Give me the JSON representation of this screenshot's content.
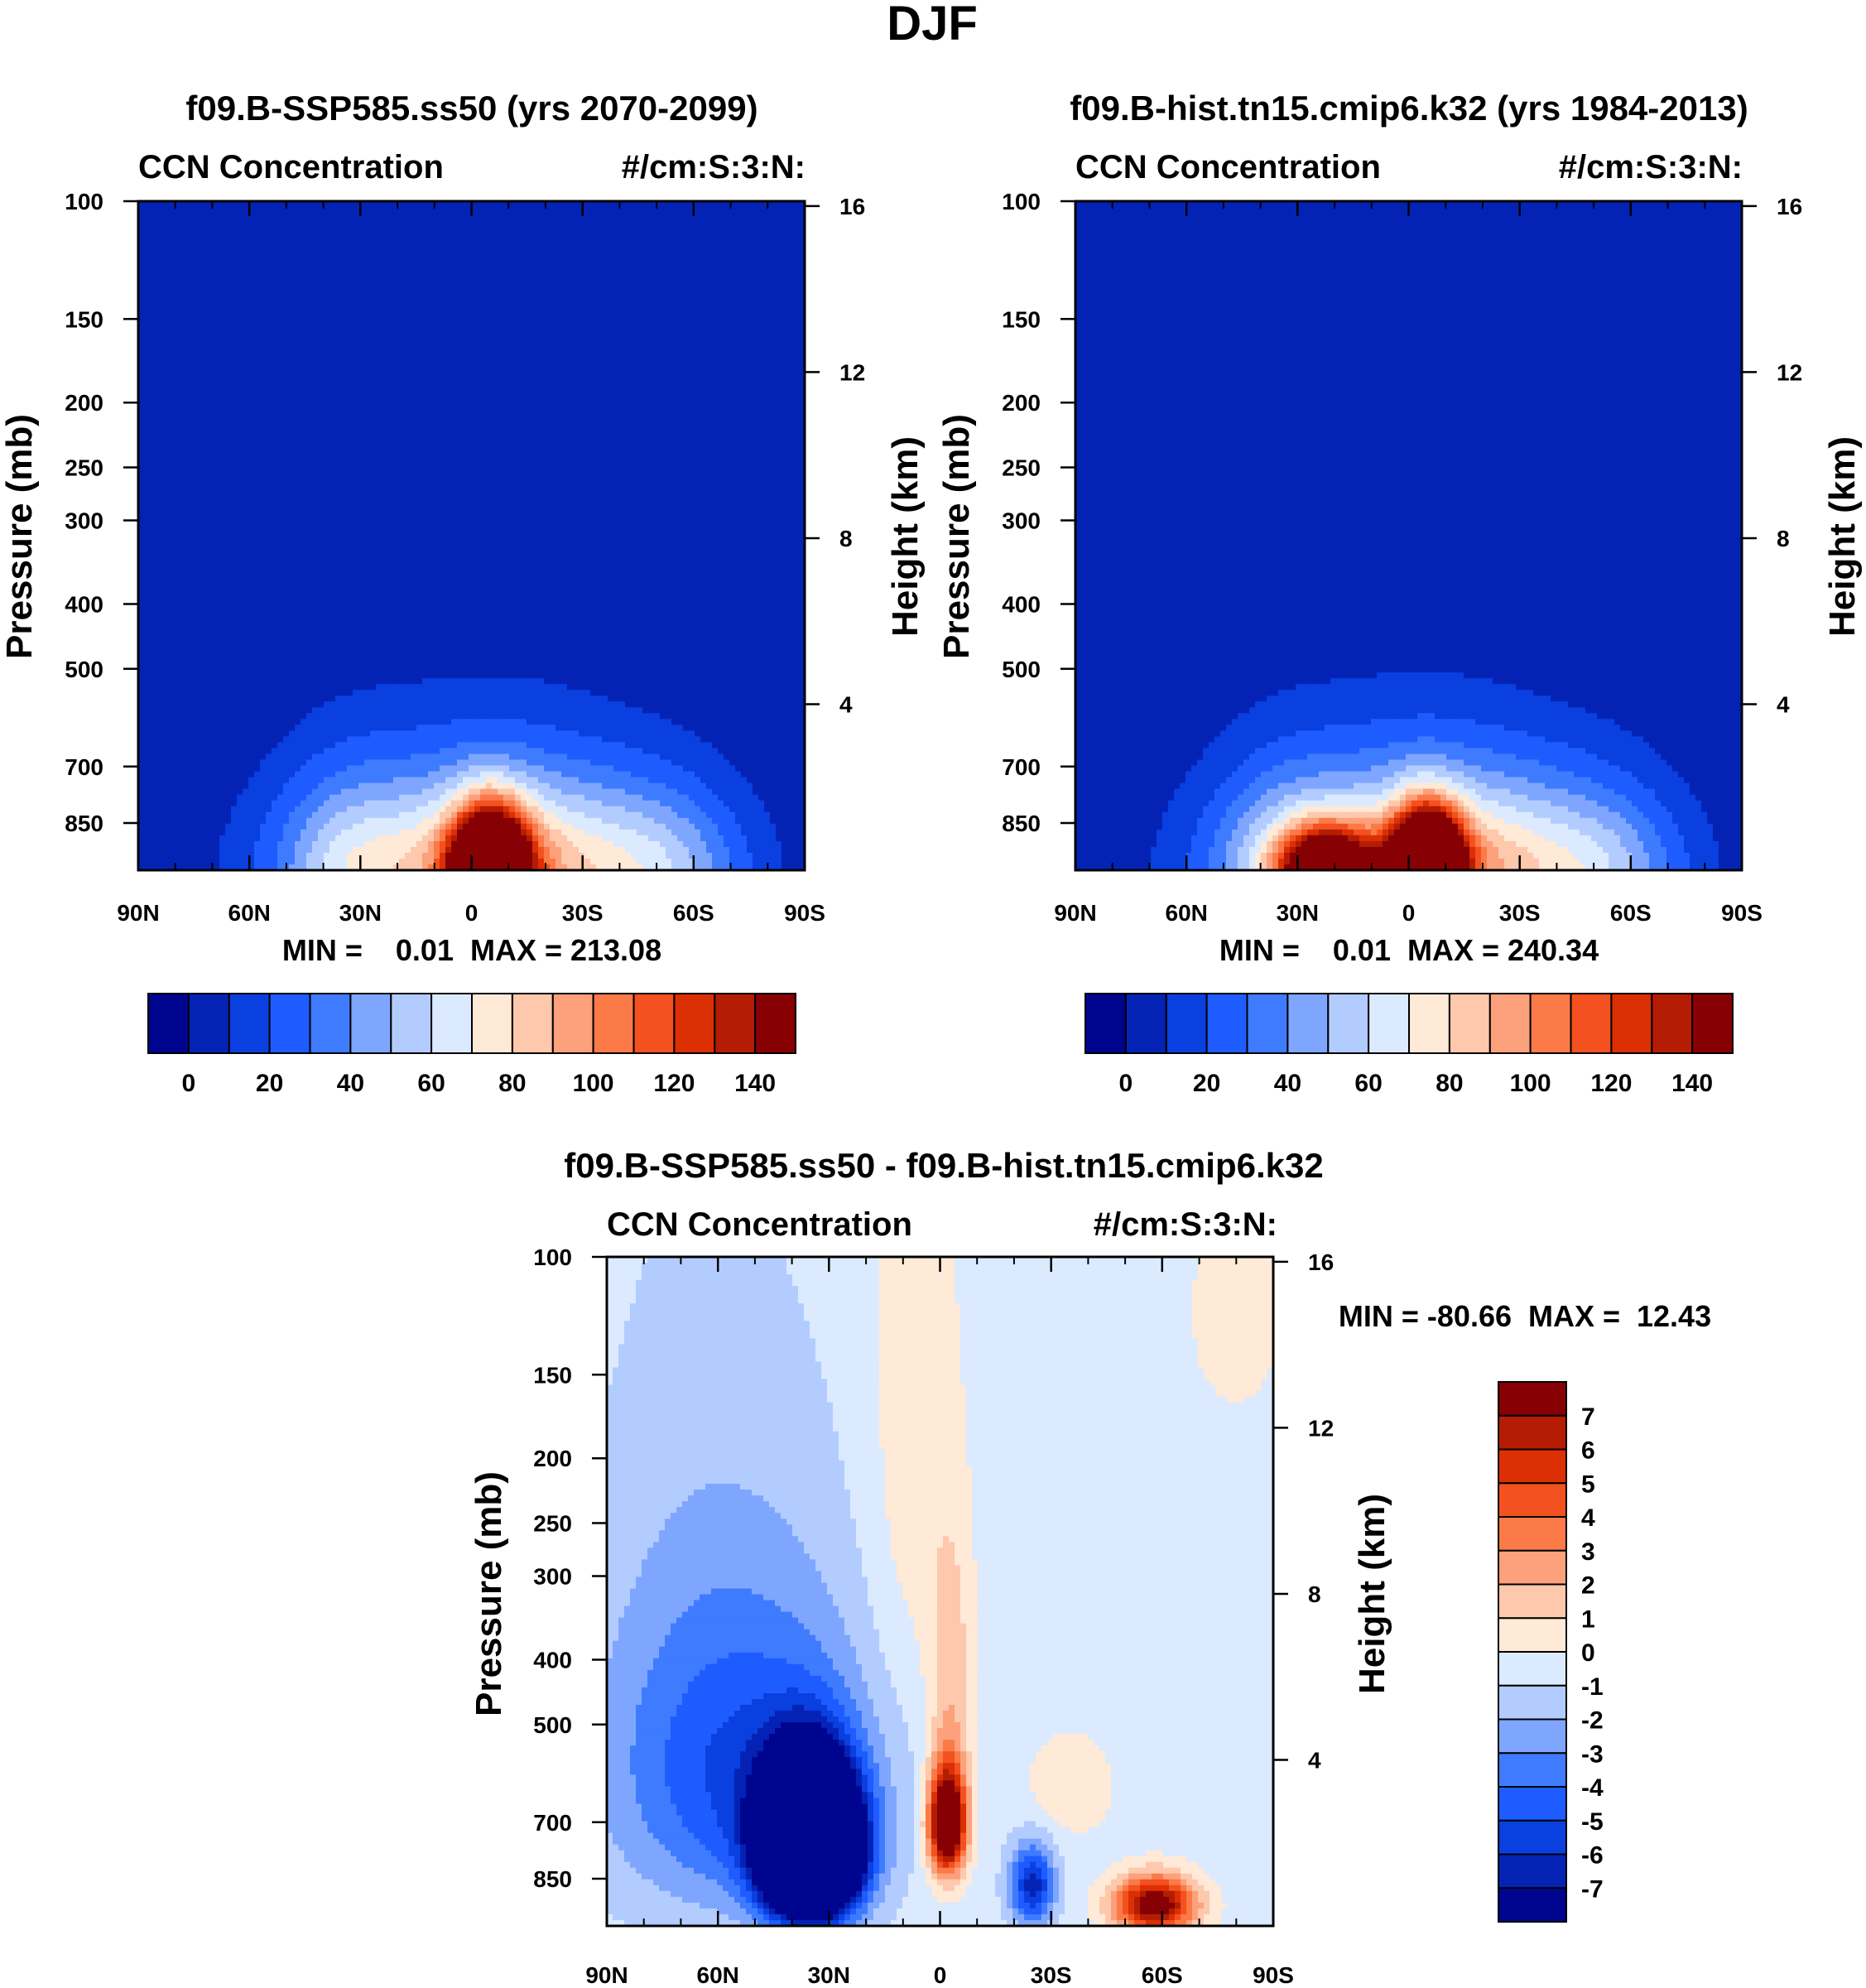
{
  "figure_title": "DJF",
  "colors": {
    "full_palette": [
      "#00058f",
      "#0423b5",
      "#0a3fe0",
      "#1e5cff",
      "#3f7bff",
      "#7fa6ff",
      "#b3ccff",
      "#dbeaff",
      "#ffe9d7",
      "#fdc8ac",
      "#fca17b",
      "#fb7a48",
      "#f3511f",
      "#dc2f03",
      "#b41d03",
      "#870004"
    ],
    "diff_palette": [
      "#00058f",
      "#0423b5",
      "#0a3fe0",
      "#1e5cff",
      "#3f7bff",
      "#7fa6ff",
      "#b3ccff",
      "#dbeaff",
      "#ffe9d7",
      "#fdc8ac",
      "#fca17b",
      "#fb7a48",
      "#f3511f",
      "#dc2f03",
      "#b41d03",
      "#870004"
    ]
  },
  "chart_data": [
    {
      "type": "heatmap",
      "title": "f09.B-SSP585.ss50 (yrs 2070-2099)",
      "left_string": "CCN Concentration",
      "right_string": "#/cm:S:3:N:",
      "xlabel": "",
      "ylabel": "Pressure (mb)",
      "ylabel_right": "Height (km)",
      "x_ticks": [
        "90N",
        "60N",
        "30N",
        "0",
        "30S",
        "60S",
        "90S"
      ],
      "x_values": [
        90,
        60,
        30,
        0,
        -30,
        -60,
        -90
      ],
      "y_ticks": [
        "100",
        "150",
        "200",
        "250",
        "300",
        "400",
        "500",
        "700",
        "850"
      ],
      "y_values": [
        100,
        150,
        200,
        250,
        300,
        400,
        500,
        700,
        850
      ],
      "y_right_ticks": [
        "16",
        "12",
        "8",
        "4"
      ],
      "y_right_values": [
        16,
        12,
        8,
        4
      ],
      "ylim_mb": [
        100,
        1000
      ],
      "xlim": [
        90,
        -90
      ],
      "contour_levels": [
        0,
        10,
        20,
        30,
        40,
        50,
        60,
        70,
        80,
        90,
        100,
        110,
        120,
        130,
        140
      ],
      "colorbar_labels": [
        "0",
        "20",
        "40",
        "60",
        "80",
        "100",
        "120",
        "140"
      ],
      "colorbar_label_levels": [
        0,
        20,
        40,
        60,
        80,
        100,
        120,
        140
      ],
      "min_max_text": "MIN =    0.01  MAX = 213.08",
      "min": 0.01,
      "max": 213.08,
      "features": [
        {
          "lat": -5,
          "p": 1000,
          "peak": 213,
          "lat_width": 10,
          "p_width": 180
        },
        {
          "lat": 5,
          "p": 1000,
          "peak": 60,
          "lat_width": 45,
          "p_width": 330
        },
        {
          "lat": -25,
          "p": 1000,
          "peak": 45,
          "lat_width": 40,
          "p_width": 300
        },
        {
          "lat": -55,
          "p": 1000,
          "peak": 22,
          "lat_width": 20,
          "p_width": 260
        },
        {
          "lat": 35,
          "p": 1000,
          "peak": 25,
          "lat_width": 18,
          "p_width": 300
        }
      ]
    },
    {
      "type": "heatmap",
      "title": "f09.B-hist.tn15.cmip6.k32 (yrs 1984-2013)",
      "left_string": "CCN Concentration",
      "right_string": "#/cm:S:3:N:",
      "xlabel": "",
      "ylabel": "Pressure (mb)",
      "ylabel_right": "Height (km)",
      "x_ticks": [
        "90N",
        "60N",
        "30N",
        "0",
        "30S",
        "60S",
        "90S"
      ],
      "x_values": [
        90,
        60,
        30,
        0,
        -30,
        -60,
        -90
      ],
      "y_ticks": [
        "100",
        "150",
        "200",
        "250",
        "300",
        "400",
        "500",
        "700",
        "850"
      ],
      "y_values": [
        100,
        150,
        200,
        250,
        300,
        400,
        500,
        700,
        850
      ],
      "y_right_ticks": [
        "16",
        "12",
        "8",
        "4"
      ],
      "y_right_values": [
        16,
        12,
        8,
        4
      ],
      "ylim_mb": [
        100,
        1000
      ],
      "xlim": [
        90,
        -90
      ],
      "contour_levels": [
        0,
        10,
        20,
        30,
        40,
        50,
        60,
        70,
        80,
        90,
        100,
        110,
        120,
        130,
        140
      ],
      "colorbar_labels": [
        "0",
        "20",
        "40",
        "60",
        "80",
        "100",
        "120",
        "140"
      ],
      "colorbar_label_levels": [
        0,
        20,
        40,
        60,
        80,
        100,
        120,
        140
      ],
      "min_max_text": "MIN =    0.01  MAX = 240.34",
      "min": 0.01,
      "max": 240.34,
      "features": [
        {
          "lat": -5,
          "p": 1000,
          "peak": 240,
          "lat_width": 9,
          "p_width": 170
        },
        {
          "lat": 22,
          "p": 1000,
          "peak": 150,
          "lat_width": 12,
          "p_width": 130
        },
        {
          "lat": 5,
          "p": 1000,
          "peak": 65,
          "lat_width": 45,
          "p_width": 330
        },
        {
          "lat": -25,
          "p": 1000,
          "peak": 45,
          "lat_width": 40,
          "p_width": 300
        },
        {
          "lat": -55,
          "p": 1000,
          "peak": 22,
          "lat_width": 20,
          "p_width": 260
        },
        {
          "lat": 35,
          "p": 1000,
          "peak": 25,
          "lat_width": 18,
          "p_width": 300
        }
      ]
    },
    {
      "type": "heatmap",
      "title": "f09.B-SSP585.ss50 - f09.B-hist.tn15.cmip6.k32",
      "left_string": "CCN Concentration",
      "right_string": "#/cm:S:3:N:",
      "xlabel": "",
      "ylabel": "Pressure (mb)",
      "ylabel_right": "Height (km)",
      "x_ticks": [
        "90N",
        "60N",
        "30N",
        "0",
        "30S",
        "60S",
        "90S"
      ],
      "x_values": [
        90,
        60,
        30,
        0,
        -30,
        -60,
        -90
      ],
      "y_ticks": [
        "100",
        "150",
        "200",
        "250",
        "300",
        "400",
        "500",
        "700",
        "850"
      ],
      "y_values": [
        100,
        150,
        200,
        250,
        300,
        400,
        500,
        700,
        850
      ],
      "y_right_ticks": [
        "16",
        "12",
        "8",
        "4"
      ],
      "y_right_values": [
        16,
        12,
        8,
        4
      ],
      "ylim_mb": [
        100,
        1000
      ],
      "xlim": [
        90,
        -90
      ],
      "contour_levels": [
        -7,
        -6,
        -5,
        -4,
        -3,
        -2,
        -1,
        0,
        1,
        2,
        3,
        4,
        5,
        6,
        7
      ],
      "colorbar_labels": [
        "7",
        "6",
        "5",
        "4",
        "3",
        "2",
        "1",
        "0",
        "-1",
        "-2",
        "-3",
        "-4",
        "-5",
        "-6",
        "-7"
      ],
      "colorbar_label_levels": [
        7,
        6,
        5,
        4,
        3,
        2,
        1,
        0,
        -1,
        -2,
        -3,
        -4,
        -5,
        -6,
        -7
      ],
      "min_max_text": "MIN = -80.66  MAX =  12.43",
      "min": -80.66,
      "max": 12.43,
      "features": [
        {
          "lat": 35,
          "p": 760,
          "peak": -28,
          "lat_width": 12,
          "p_width": 180
        },
        {
          "lat": 45,
          "p": 600,
          "peak": -3.5,
          "lat_width": 30,
          "p_width": 320
        },
        {
          "lat": 70,
          "p": 550,
          "peak": -2.2,
          "lat_width": 30,
          "p_width": 360
        },
        {
          "lat": -25,
          "p": 870,
          "peak": -6,
          "lat_width": 6,
          "p_width": 120
        },
        {
          "lat": -2,
          "p": 700,
          "peak": 12,
          "lat_width": 5,
          "p_width": 130
        },
        {
          "lat": -3,
          "p": 430,
          "peak": 2.2,
          "lat_width": 6,
          "p_width": 200
        },
        {
          "lat": -58,
          "p": 930,
          "peak": 9,
          "lat_width": 11,
          "p_width": 90
        },
        {
          "lat": -35,
          "p": 620,
          "peak": 1.3,
          "lat_width": 12,
          "p_width": 110
        },
        {
          "lat": 8,
          "p": 200,
          "peak": 1.2,
          "lat_width": 12,
          "p_width": 250
        },
        {
          "lat": -80,
          "p": 120,
          "peak": 1.1,
          "lat_width": 13,
          "p_width": 50
        }
      ]
    }
  ]
}
